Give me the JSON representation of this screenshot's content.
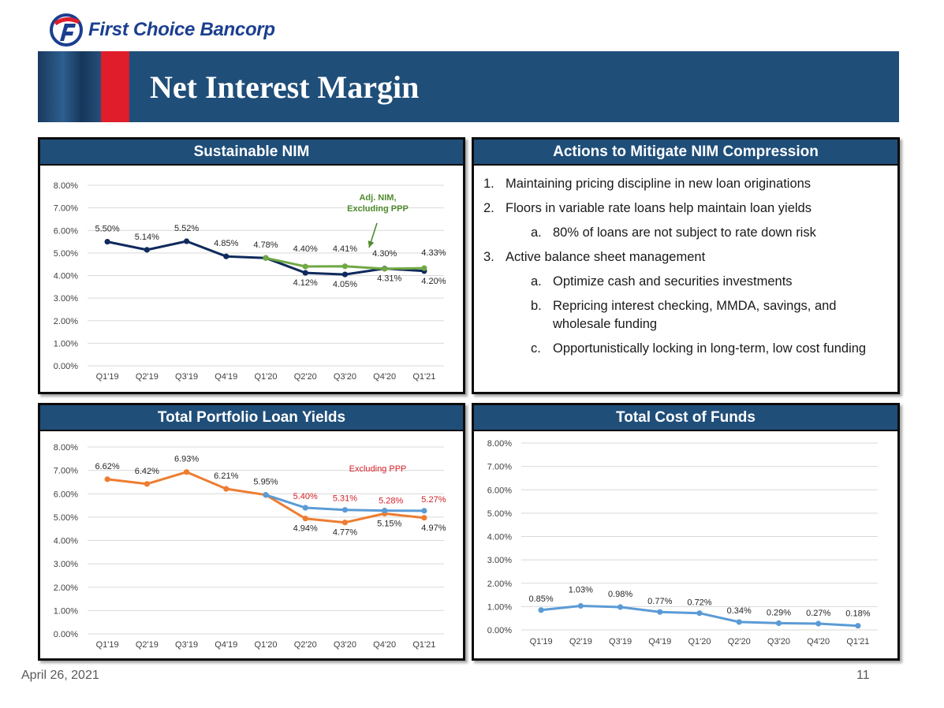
{
  "company": {
    "name": "First Choice Bancorp"
  },
  "slide": {
    "title": "Net Interest Margin",
    "date": "April 26, 2021",
    "page": "11"
  },
  "colors": {
    "navy": "#0f2a5c",
    "green": "#70a844",
    "orange": "#ed7d31",
    "blue": "#5b9bd5",
    "red_label": "#d51f26",
    "header": "#1f4e79"
  },
  "actions": {
    "title": "Actions to Mitigate NIM Compression",
    "items": [
      {
        "num": "1.",
        "text": "Maintaining pricing discipline in new loan originations",
        "level": 0
      },
      {
        "num": "2.",
        "text": "Floors in variable rate loans help maintain loan yields",
        "level": 0
      },
      {
        "num": "a.",
        "text": "80% of loans are not subject to rate down risk",
        "level": 1
      },
      {
        "num": "3.",
        "text": "Active balance sheet management",
        "level": 0
      },
      {
        "num": "a.",
        "text": "Optimize cash and securities investments",
        "level": 1
      },
      {
        "num": "b.",
        "text": "Repricing interest checking, MMDA, savings, and wholesale funding",
        "level": 1
      },
      {
        "num": "c.",
        "text": "Opportunistically locking in long-term, low cost funding",
        "level": 1
      }
    ]
  },
  "chart_data": [
    {
      "id": "nim",
      "type": "line",
      "title": "Sustainable NIM",
      "categories": [
        "Q1'19",
        "Q2'19",
        "Q3'19",
        "Q4'19",
        "Q1'20",
        "Q2'20",
        "Q3'20",
        "Q4'20",
        "Q1'21"
      ],
      "yticks": [
        "0.00%",
        "1.00%",
        "2.00%",
        "3.00%",
        "4.00%",
        "5.00%",
        "6.00%",
        "7.00%",
        "8.00%"
      ],
      "ylim": [
        0,
        8
      ],
      "annotation": "Adj. NIM, Excluding PPP",
      "series": [
        {
          "name": "NIM",
          "color": "#0f2a5c",
          "values": [
            5.5,
            5.14,
            5.52,
            4.85,
            4.78,
            4.12,
            4.05,
            4.31,
            4.2
          ],
          "labels": [
            "5.50%",
            "5.14%",
            "5.52%",
            "4.85%",
            "4.78%",
            "4.12%",
            "4.05%",
            "4.31%",
            "4.20%"
          ]
        },
        {
          "name": "Adj. NIM, Excluding PPP",
          "color": "#70a844",
          "values": [
            null,
            null,
            null,
            null,
            4.78,
            4.4,
            4.41,
            4.3,
            4.33
          ],
          "labels": [
            null,
            null,
            null,
            null,
            null,
            "4.40%",
            "4.41%",
            "4.30%",
            "4.33%"
          ]
        }
      ]
    },
    {
      "id": "loans",
      "type": "line",
      "title": "Total Portfolio Loan Yields",
      "categories": [
        "Q1'19",
        "Q2'19",
        "Q3'19",
        "Q4'19",
        "Q1'20",
        "Q2'20",
        "Q3'20",
        "Q4'20",
        "Q1'21"
      ],
      "yticks": [
        "0.00%",
        "1.00%",
        "2.00%",
        "3.00%",
        "4.00%",
        "5.00%",
        "6.00%",
        "7.00%",
        "8.00%"
      ],
      "ylim": [
        0,
        8
      ],
      "annotation": "Excluding PPP",
      "series": [
        {
          "name": "Loan Yield",
          "color": "#ed7d31",
          "values": [
            6.62,
            6.42,
            6.93,
            6.21,
            5.95,
            4.94,
            4.77,
            5.15,
            4.97
          ],
          "labels": [
            "6.62%",
            "6.42%",
            "6.93%",
            "6.21%",
            "5.95%",
            "4.94%",
            "4.77%",
            "5.15%",
            "4.97%"
          ]
        },
        {
          "name": "Excluding PPP",
          "color": "#5b9bd5",
          "values": [
            null,
            null,
            null,
            null,
            5.95,
            5.4,
            5.31,
            5.28,
            5.27
          ],
          "labels": [
            null,
            null,
            null,
            null,
            null,
            "5.40%",
            "5.31%",
            "5.28%",
            "5.27%"
          ]
        }
      ]
    },
    {
      "id": "cof",
      "type": "line",
      "title": "Total Cost of Funds",
      "categories": [
        "Q1'19",
        "Q2'19",
        "Q3'19",
        "Q4'19",
        "Q1'20",
        "Q2'20",
        "Q3'20",
        "Q4'20",
        "Q1'21"
      ],
      "yticks": [
        "0.00%",
        "1.00%",
        "2.00%",
        "3.00%",
        "4.00%",
        "5.00%",
        "6.00%",
        "7.00%",
        "8.00%"
      ],
      "ylim": [
        0,
        8
      ],
      "series": [
        {
          "name": "Cost of Funds",
          "color": "#5b9bd5",
          "values": [
            0.85,
            1.03,
            0.98,
            0.77,
            0.72,
            0.34,
            0.29,
            0.27,
            0.18
          ],
          "labels": [
            "0.85%",
            "1.03%",
            "0.98%",
            "0.77%",
            "0.72%",
            "0.34%",
            "0.29%",
            "0.27%",
            "0.18%"
          ]
        }
      ]
    }
  ]
}
